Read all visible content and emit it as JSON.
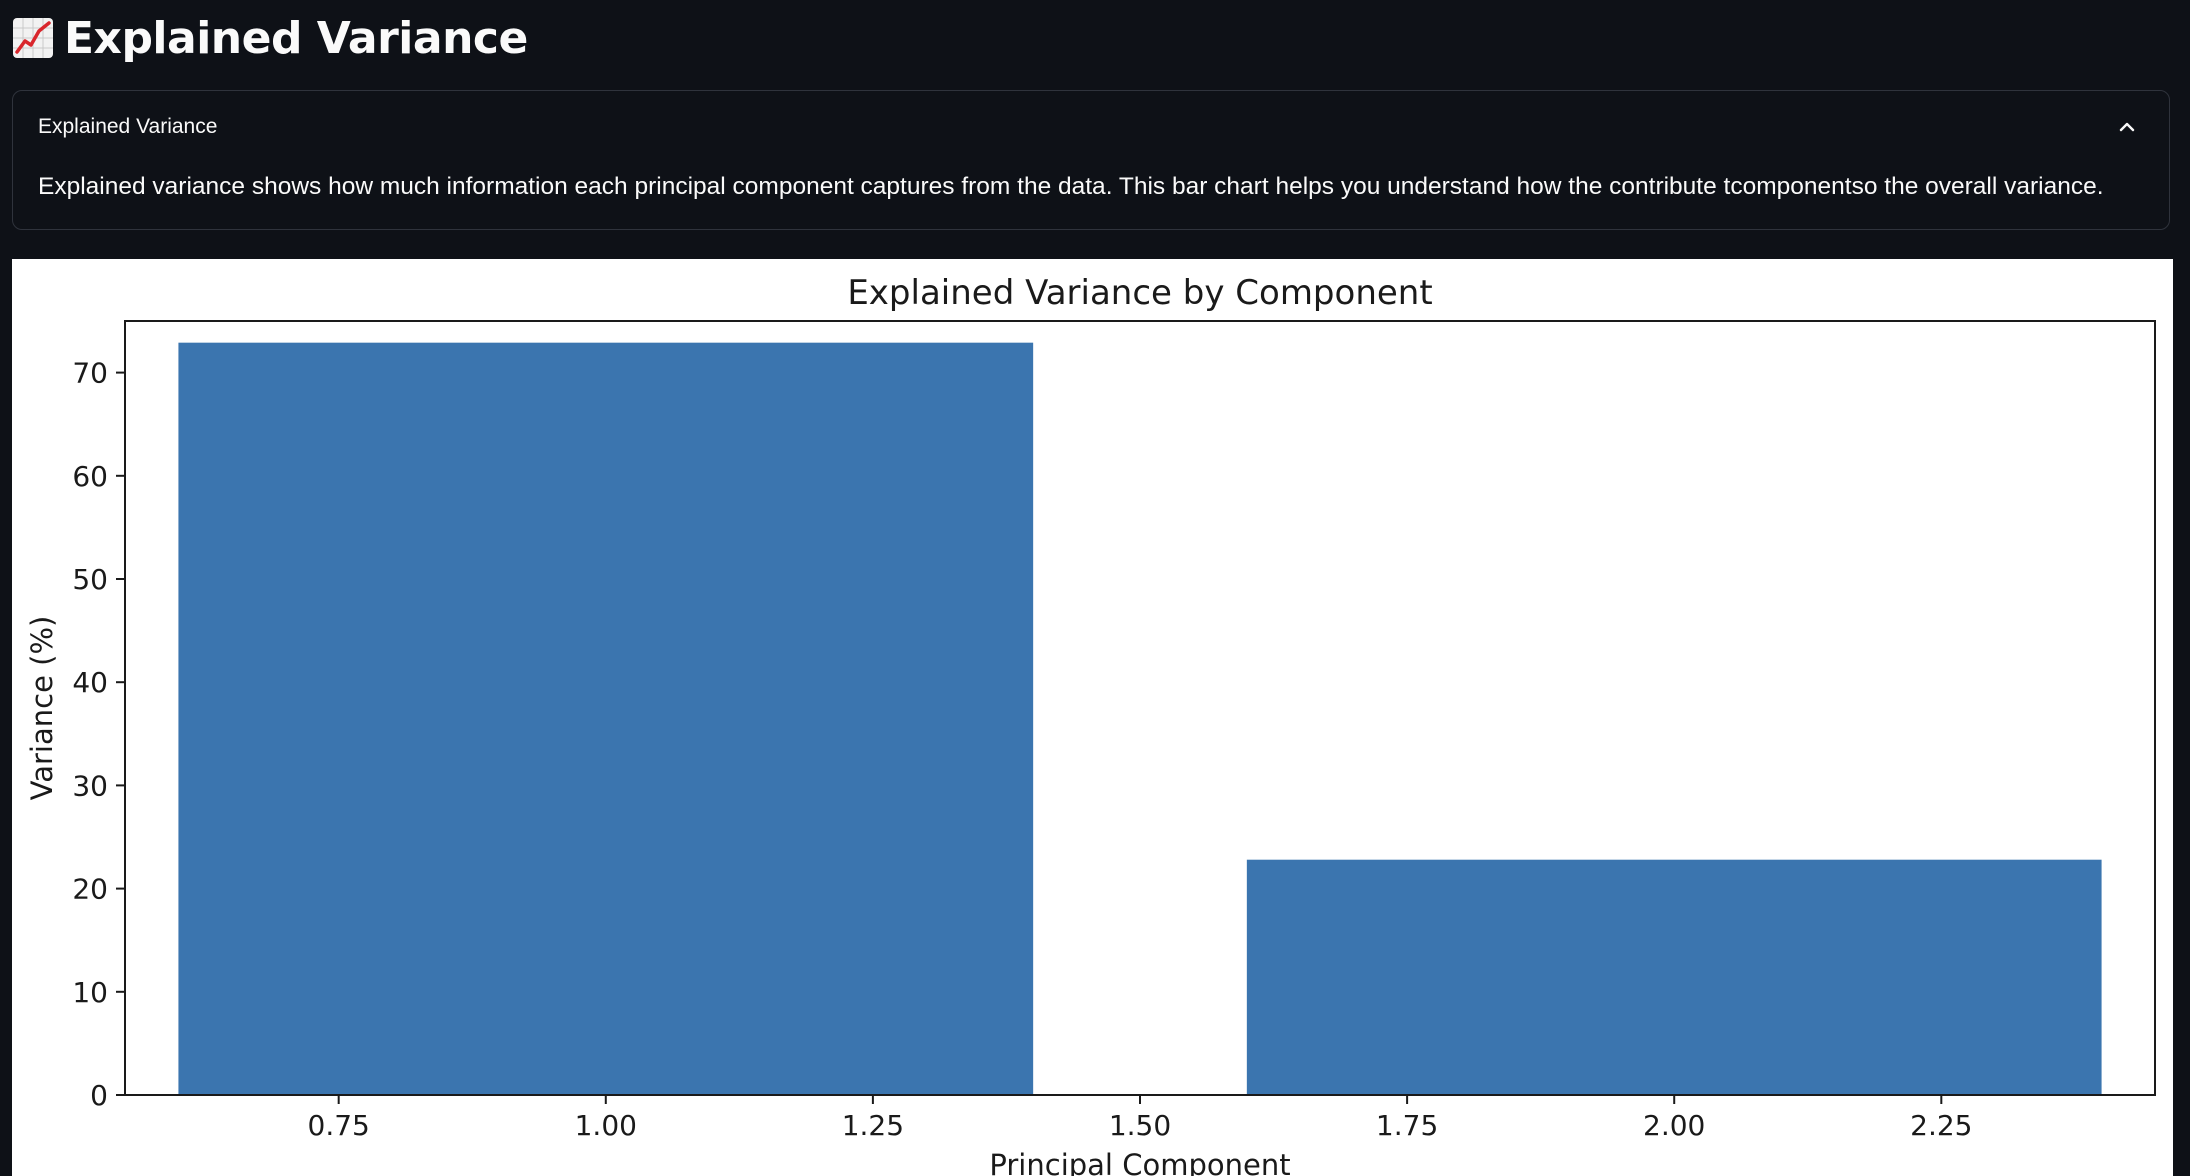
{
  "header": {
    "title": "Explained Variance",
    "icon": "chart-increasing-icon"
  },
  "expander": {
    "label": "Explained Variance",
    "expanded": true,
    "body": "Explained variance shows how much information each principal component captures from the data. This bar chart helps you understand how the contribute tcomponentso the overall variance."
  },
  "colors": {
    "background": "#0e1117",
    "bar": "#3b75af",
    "border": "#2f333c"
  },
  "chart_data": {
    "type": "bar",
    "title": "Explained Variance by Component",
    "xlabel": "Principal Component",
    "ylabel": "Variance (%)",
    "x": [
      1,
      2
    ],
    "values": [
      72.9,
      22.8
    ],
    "bar_width": 0.8,
    "xlim": [
      0.55,
      2.45
    ],
    "ylim": [
      0,
      75
    ],
    "xticks": [
      "0.75",
      "1.00",
      "1.25",
      "1.50",
      "1.75",
      "2.00",
      "2.25"
    ],
    "yticks": [
      "0",
      "10",
      "20",
      "30",
      "40",
      "50",
      "60",
      "70"
    ],
    "grid": false,
    "color": "#3b75af"
  }
}
